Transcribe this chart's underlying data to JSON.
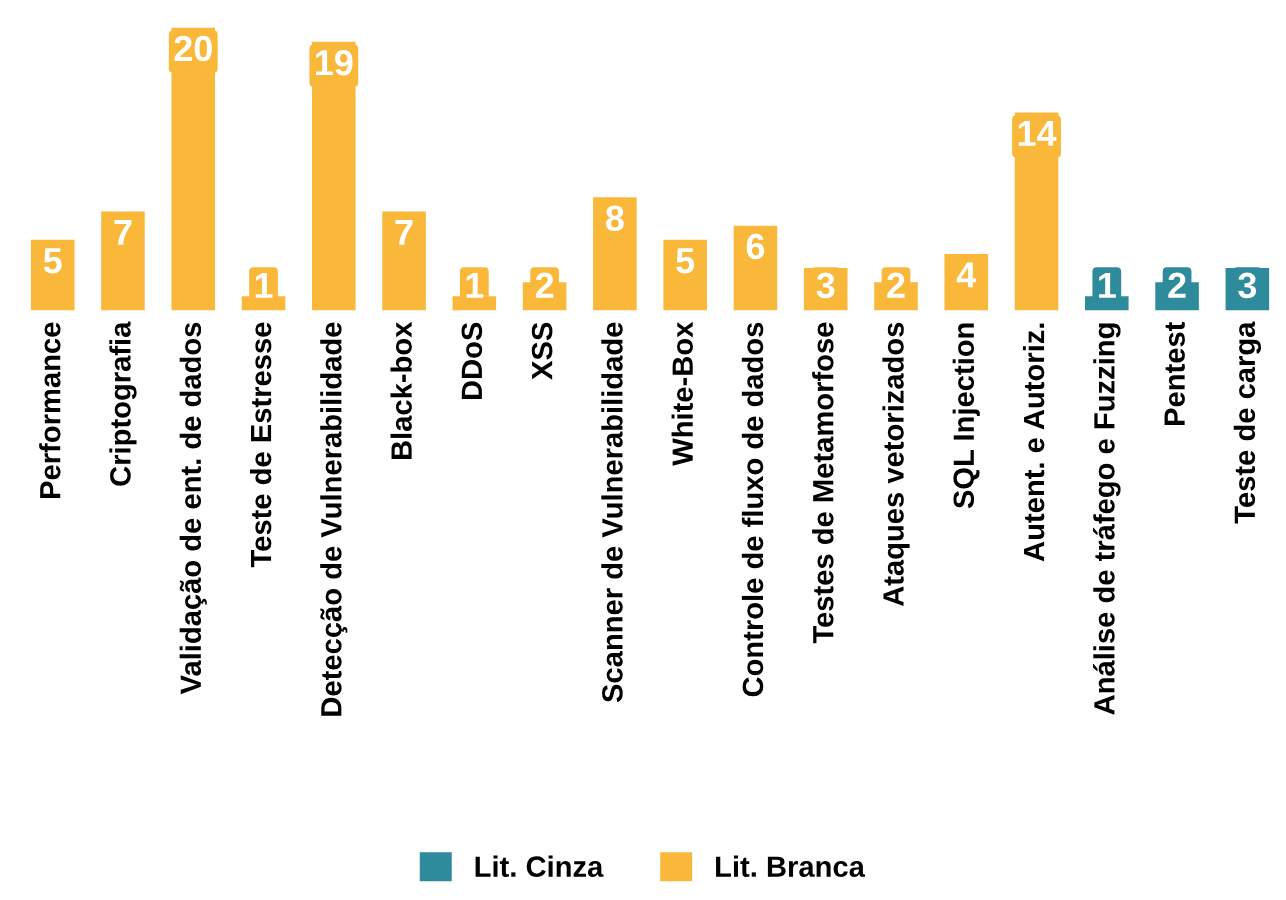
{
  "chart_data": {
    "type": "bar",
    "stacked": true,
    "data_labels": true,
    "legend": "bottom",
    "grid": false,
    "categories": [
      "Performance",
      "Criptografia",
      "Validação de ent. de dados",
      "Teste de Estresse",
      "Detecção de Vulnerabilidade",
      "Black-box",
      "DDoS",
      "XSS",
      "Scanner de Vulnerabilidade",
      "White-Box",
      "Controle de fluxo de dados",
      "Testes de Metamorfose",
      "Ataques vetorizados",
      "SQL Injection",
      "Autent. e Autoriz.",
      "Análise de tráfego e Fuzzing",
      "Pentest",
      "Teste de carga"
    ],
    "series": [
      {
        "name": "Lit. Cinza",
        "color": "#2e8b9b",
        "values": [
          null,
          null,
          null,
          null,
          null,
          null,
          null,
          null,
          null,
          null,
          null,
          null,
          null,
          null,
          null,
          1,
          2,
          3
        ]
      },
      {
        "name": "Lit. Branca",
        "color": "#f9b83a",
        "values": [
          5,
          7,
          20,
          1,
          19,
          7,
          1,
          2,
          8,
          5,
          6,
          3,
          2,
          4,
          14,
          null,
          null,
          null
        ]
      }
    ]
  }
}
